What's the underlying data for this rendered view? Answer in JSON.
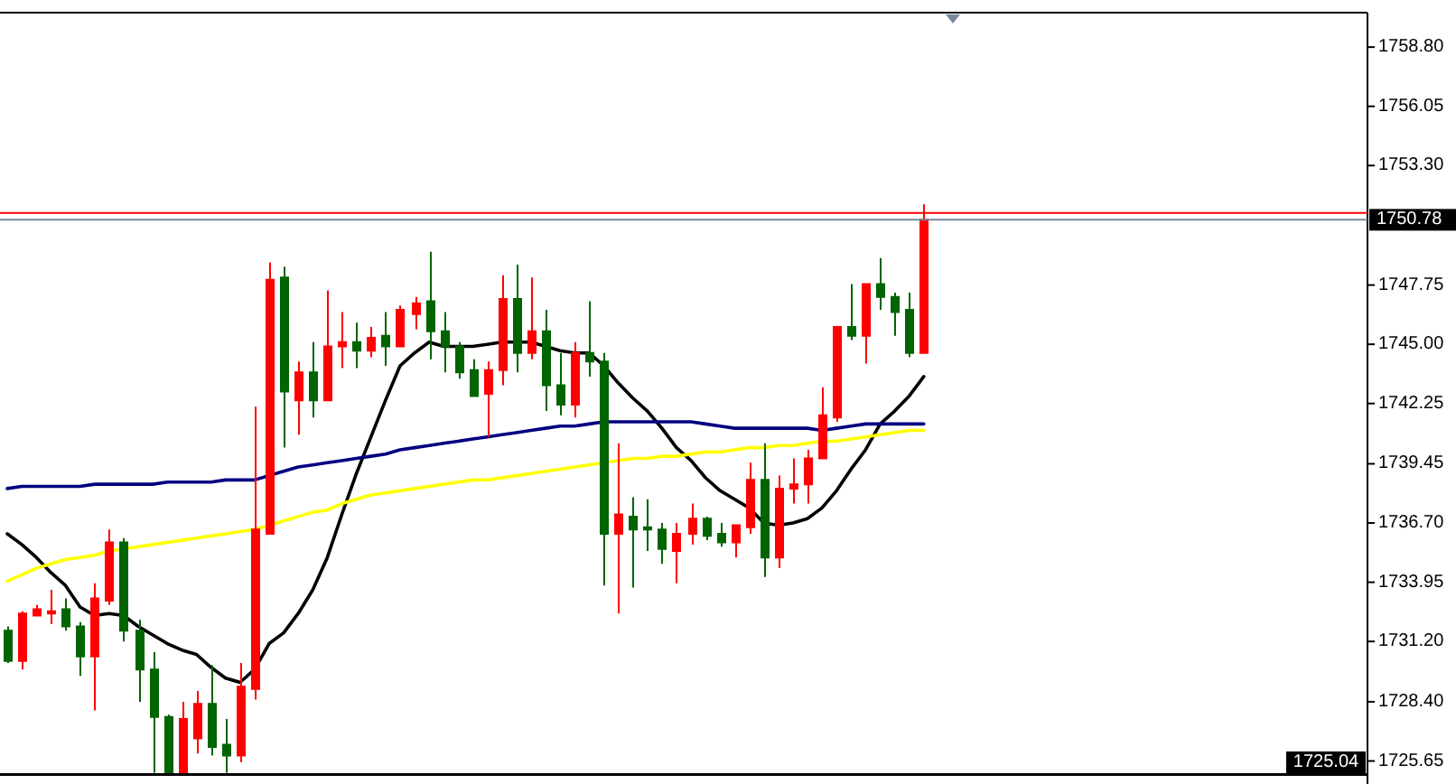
{
  "chart_data": {
    "type": "candlestick",
    "categories": [
      null,
      null,
      null,
      null,
      null,
      null,
      null,
      null,
      null,
      null,
      null,
      null,
      null,
      null,
      null,
      null,
      null,
      null,
      null,
      null,
      null,
      null,
      null,
      null,
      null,
      null,
      null,
      null,
      null,
      null,
      null,
      null,
      null,
      null,
      null,
      null,
      null,
      null,
      null,
      null,
      null,
      null,
      null,
      null,
      null,
      null,
      null,
      null,
      null,
      null,
      null,
      null,
      null,
      null,
      null,
      null,
      null,
      null,
      null,
      null,
      null,
      null,
      null,
      null
    ],
    "ohlc": [
      [
        1731.7,
        1731.9,
        1730.2,
        1730.3
      ],
      [
        1730.3,
        1732.6,
        1729.9,
        1732.5
      ],
      [
        1732.4,
        1732.9,
        1732.4,
        1732.7
      ],
      [
        1732.5,
        1733.6,
        1732.0,
        1732.6
      ],
      [
        1732.7,
        1733.2,
        1731.7,
        1731.9
      ],
      [
        1731.9,
        1732.1,
        1729.6,
        1730.5
      ],
      [
        1730.5,
        1733.9,
        1728.0,
        1733.2
      ],
      [
        1733.1,
        1736.4,
        1732.9,
        1735.8
      ],
      [
        1735.8,
        1736.0,
        1731.2,
        1731.7
      ],
      [
        1731.7,
        1732.2,
        1728.4,
        1729.9
      ],
      [
        1729.9,
        1730.7,
        1725.1,
        1727.7
      ],
      [
        1727.7,
        1727.8,
        1725.1,
        1725.1
      ],
      [
        1725.1,
        1728.4,
        1725.1,
        1727.6
      ],
      [
        1726.7,
        1728.9,
        1726.0,
        1728.3
      ],
      [
        1728.3,
        1730.1,
        1725.9,
        1726.3
      ],
      [
        1726.4,
        1727.6,
        1725.1,
        1725.9
      ],
      [
        1725.9,
        1730.2,
        1725.6,
        1729.1
      ],
      [
        1729.0,
        1742.1,
        1728.5,
        1736.4
      ],
      [
        1736.2,
        1748.8,
        1736.2,
        1748.0
      ],
      [
        1748.1,
        1748.6,
        1740.2,
        1742.8
      ],
      [
        1742.4,
        1744.2,
        1740.8,
        1743.7
      ],
      [
        1743.7,
        1745.1,
        1741.6,
        1742.4
      ],
      [
        1742.4,
        1747.5,
        1742.4,
        1744.9
      ],
      [
        1744.9,
        1746.5,
        1743.9,
        1745.1
      ],
      [
        1745.1,
        1746.0,
        1743.9,
        1744.7
      ],
      [
        1744.7,
        1745.8,
        1744.4,
        1745.3
      ],
      [
        1745.4,
        1746.5,
        1744.0,
        1744.9
      ],
      [
        1744.9,
        1746.8,
        1744.9,
        1746.6
      ],
      [
        1746.4,
        1747.2,
        1745.7,
        1746.9
      ],
      [
        1747.0,
        1749.3,
        1744.3,
        1745.6
      ],
      [
        1745.6,
        1746.5,
        1743.7,
        1744.9
      ],
      [
        1744.9,
        1745.1,
        1743.4,
        1743.7
      ],
      [
        1743.8,
        1744.3,
        1742.6,
        1742.6
      ],
      [
        1742.7,
        1744.2,
        1740.7,
        1743.8
      ],
      [
        1743.8,
        1748.2,
        1743.1,
        1747.1
      ],
      [
        1747.1,
        1748.7,
        1743.7,
        1744.6
      ],
      [
        1744.6,
        1748.1,
        1744.3,
        1745.6
      ],
      [
        1745.6,
        1746.6,
        1741.9,
        1743.1
      ],
      [
        1743.1,
        1744.6,
        1741.7,
        1742.2
      ],
      [
        1742.2,
        1745.1,
        1741.6,
        1744.6
      ],
      [
        1744.6,
        1747.0,
        1743.5,
        1744.2
      ],
      [
        1744.2,
        1744.6,
        1733.8,
        1736.2
      ],
      [
        1736.2,
        1740.4,
        1732.5,
        1737.1
      ],
      [
        1737.0,
        1737.9,
        1733.7,
        1736.4
      ],
      [
        1736.5,
        1737.8,
        1735.4,
        1736.4
      ],
      [
        1736.4,
        1736.7,
        1734.8,
        1735.5
      ],
      [
        1735.4,
        1736.7,
        1733.9,
        1736.2
      ],
      [
        1736.2,
        1737.6,
        1735.7,
        1736.9
      ],
      [
        1736.9,
        1737.0,
        1735.9,
        1736.1
      ],
      [
        1736.2,
        1736.7,
        1735.6,
        1735.8
      ],
      [
        1735.8,
        1736.6,
        1735.1,
        1736.6
      ],
      [
        1736.5,
        1739.5,
        1736.2,
        1738.7
      ],
      [
        1738.7,
        1740.4,
        1734.2,
        1735.1
      ],
      [
        1735.1,
        1738.9,
        1734.6,
        1738.3
      ],
      [
        1738.3,
        1739.7,
        1737.6,
        1738.5
      ],
      [
        1738.5,
        1740.1,
        1737.6,
        1739.7
      ],
      [
        1739.7,
        1743.0,
        1739.7,
        1741.7
      ],
      [
        1741.6,
        1745.8,
        1741.4,
        1745.8
      ],
      [
        1745.8,
        1747.8,
        1745.2,
        1745.4
      ],
      [
        1745.4,
        1747.8,
        1744.1,
        1747.8
      ],
      [
        1747.8,
        1749.0,
        1746.6,
        1747.2
      ],
      [
        1747.2,
        1747.4,
        1745.4,
        1746.5
      ],
      [
        1746.6,
        1747.4,
        1744.4,
        1744.6
      ],
      [
        1744.6,
        1751.5,
        1744.6,
        1750.78
      ]
    ],
    "colors": [
      "#006400",
      "#ff0000",
      "#ff0000",
      "#ff0000",
      "#006400",
      "#006400",
      "#ff0000",
      "#ff0000",
      "#006400",
      "#006400",
      "#006400",
      "#006400",
      "#ff0000",
      "#ff0000",
      "#006400",
      "#006400",
      "#ff0000",
      "#ff0000",
      "#ff0000",
      "#006400",
      "#ff0000",
      "#006400",
      "#ff0000",
      "#ff0000",
      "#006400",
      "#ff0000",
      "#006400",
      "#ff0000",
      "#ff0000",
      "#006400",
      "#006400",
      "#006400",
      "#006400",
      "#ff0000",
      "#ff0000",
      "#006400",
      "#ff0000",
      "#006400",
      "#006400",
      "#ff0000",
      "#006400",
      "#006400",
      "#ff0000",
      "#006400",
      "#006400",
      "#006400",
      "#ff0000",
      "#ff0000",
      "#006400",
      "#006400",
      "#ff0000",
      "#ff0000",
      "#006400",
      "#ff0000",
      "#ff0000",
      "#ff0000",
      "#ff0000",
      "#ff0000",
      "#006400",
      "#ff0000",
      "#006400",
      "#006400",
      "#006400",
      "#ff0000"
    ],
    "series": [
      {
        "type": "line",
        "color": "#000000",
        "values": [
          1736.2,
          1735.7,
          1735.1,
          1734.4,
          1733.8,
          1732.8,
          1732.4,
          1732.5,
          1732.4,
          1731.9,
          1731.5,
          1731.1,
          1730.8,
          1730.6,
          1730.0,
          1729.5,
          1729.3,
          1729.9,
          1731.1,
          1731.6,
          1732.5,
          1733.6,
          1735.1,
          1737.1,
          1739.0,
          1740.7,
          1742.4,
          1744.0,
          1744.6,
          1745.1,
          1744.9,
          1744.9,
          1744.9,
          1745.0,
          1745.1,
          1745.1,
          1745.1,
          1744.9,
          1744.7,
          1744.6,
          1744.6,
          1744.0,
          1743.2,
          1742.5,
          1741.9,
          1741.1,
          1740.2,
          1739.6,
          1738.8,
          1738.2,
          1737.8,
          1737.4,
          1736.7,
          1736.6,
          1736.7,
          1736.9,
          1737.4,
          1738.2,
          1739.2,
          1740.1,
          1741.3,
          1741.9,
          1742.6,
          1743.5
        ]
      },
      {
        "type": "line",
        "color": "#000080",
        "values": [
          1738.3,
          1738.4,
          1738.4,
          1738.4,
          1738.4,
          1738.4,
          1738.5,
          1738.5,
          1738.5,
          1738.5,
          1738.5,
          1738.6,
          1738.6,
          1738.6,
          1738.6,
          1738.7,
          1738.7,
          1738.7,
          1738.9,
          1739.1,
          1739.3,
          1739.4,
          1739.5,
          1739.6,
          1739.7,
          1739.8,
          1739.9,
          1740.1,
          1740.2,
          1740.3,
          1740.4,
          1740.5,
          1740.6,
          1740.7,
          1740.8,
          1740.9,
          1741.0,
          1741.1,
          1741.2,
          1741.2,
          1741.3,
          1741.4,
          1741.4,
          1741.4,
          1741.4,
          1741.4,
          1741.4,
          1741.4,
          1741.3,
          1741.2,
          1741.1,
          1741.1,
          1741.1,
          1741.1,
          1741.1,
          1741.1,
          1741.0,
          1741.1,
          1741.2,
          1741.3,
          1741.3,
          1741.3,
          1741.3,
          1741.3
        ]
      },
      {
        "type": "line",
        "color": "#ffff00",
        "values": [
          1734.0,
          1734.3,
          1734.6,
          1734.8,
          1735.0,
          1735.1,
          1735.2,
          1735.4,
          1735.5,
          1735.6,
          1735.7,
          1735.8,
          1735.9,
          1736.0,
          1736.1,
          1736.2,
          1736.3,
          1736.4,
          1736.6,
          1736.8,
          1737.0,
          1737.2,
          1737.3,
          1737.6,
          1737.8,
          1738.0,
          1738.1,
          1738.2,
          1738.3,
          1738.4,
          1738.5,
          1738.6,
          1738.7,
          1738.7,
          1738.8,
          1738.9,
          1739.0,
          1739.1,
          1739.2,
          1739.3,
          1739.4,
          1739.5,
          1739.6,
          1739.7,
          1739.7,
          1739.8,
          1739.8,
          1739.9,
          1740.0,
          1740.0,
          1740.1,
          1740.2,
          1740.2,
          1740.3,
          1740.3,
          1740.4,
          1740.5,
          1740.5,
          1740.6,
          1740.7,
          1740.8,
          1740.9,
          1741.0,
          1741.0
        ]
      }
    ],
    "ylim": [
      1725.0,
      1760.4
    ],
    "yticks": [
      {
        "value": 1758.8,
        "label": "1758.80"
      },
      1756.05,
      {
        "value": 1753.3,
        "label": "1753.30"
      },
      1747.75,
      {
        "value": 1745,
        "label": "1745.00"
      },
      1742.25,
      1739.45,
      {
        "value": 1736.7,
        "label": "1736.70"
      },
      1733.95,
      {
        "value": 1731.2,
        "label": "1731.20"
      },
      {
        "value": 1728.4,
        "label": "1728.40"
      },
      1725.65
    ],
    "ref_lines": [
      {
        "axis": "y",
        "value": 1751.1,
        "color": "#ff0000"
      },
      {
        "axis": "y",
        "value": 1750.78,
        "label": "1750.78",
        "color": "#778899"
      },
      {
        "axis": "y",
        "value": 1725.04,
        "label": "1725.04",
        "color": "#000000"
      }
    ],
    "tick_labels": "y"
  }
}
